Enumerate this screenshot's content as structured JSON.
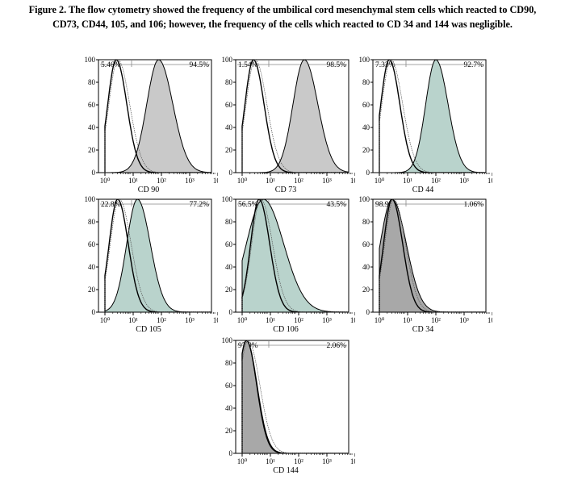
{
  "caption": {
    "label": "Figure 2.",
    "line1": "The flow cytometry showed the frequency of the umbilical cord mesenchymal stem cells which reacted to CD90,",
    "line2": "CD73, CD44, 105, and 106; however, the frequency of the cells which reacted to CD 34 and 144  was negligible."
  },
  "y_ticks": [
    "100",
    "80",
    "60",
    "40",
    "20",
    "0"
  ],
  "x_ticks": [
    "10⁰",
    "10¹",
    "10²",
    "10³",
    "10⁴"
  ],
  "colors": {
    "gray_fill": "#c9c9c9",
    "green_fill": "#b9d3cc",
    "dark_gray_fill": "#a8a8a8",
    "line": "#000000"
  },
  "chart_data": [
    {
      "type": "area",
      "marker": "CD 90",
      "left_pct": "5.46%",
      "right_pct": "94.5%",
      "fill": "gray",
      "positive_peak_decade": 1.9,
      "positive_width": 0.42,
      "control_peak_decade": 0.4,
      "ylim": [
        0,
        100
      ],
      "xscale": "log"
    },
    {
      "type": "area",
      "marker": "CD 73",
      "left_pct": "1.54%",
      "right_pct": "98.5%",
      "fill": "gray",
      "positive_peak_decade": 2.2,
      "positive_width": 0.4,
      "control_peak_decade": 0.4,
      "ylim": [
        0,
        100
      ],
      "xscale": "log"
    },
    {
      "type": "area",
      "marker": "CD 44",
      "left_pct": "7.33%",
      "right_pct": "92.7%",
      "fill": "green",
      "positive_peak_decade": 2.0,
      "positive_width": 0.36,
      "control_peak_decade": 0.35,
      "ylim": [
        0,
        100
      ],
      "xscale": "log"
    },
    {
      "type": "area",
      "marker": "CD 105",
      "left_pct": "22.8%",
      "right_pct": "77.2%",
      "fill": "green",
      "positive_peak_decade": 1.15,
      "positive_width": 0.38,
      "control_peak_decade": 0.45,
      "ylim": [
        0,
        100
      ],
      "xscale": "log"
    },
    {
      "type": "area",
      "marker": "CD 106",
      "left_pct": "56.5%",
      "right_pct": "43.5%",
      "fill": "green",
      "positive_peak_decade": 0.75,
      "positive_width": 0.6,
      "control_peak_decade": 0.6,
      "ylim": [
        0,
        100
      ],
      "xscale": "log"
    },
    {
      "type": "area",
      "marker": "CD 34",
      "left_pct": "98.9%",
      "right_pct": "1.06%",
      "fill": "dark_gray",
      "positive_peak_decade": 0.45,
      "positive_width": 0.42,
      "control_peak_decade": 0.45,
      "ylim": [
        0,
        100
      ],
      "xscale": "log"
    },
    {
      "type": "area",
      "marker": "CD 144",
      "left_pct": "97.9%",
      "right_pct": "2.06%",
      "fill": "dark_gray",
      "positive_peak_decade": 0.15,
      "positive_width": 0.3,
      "control_peak_decade": 0.15,
      "ylim": [
        0,
        100
      ],
      "xscale": "log"
    }
  ]
}
